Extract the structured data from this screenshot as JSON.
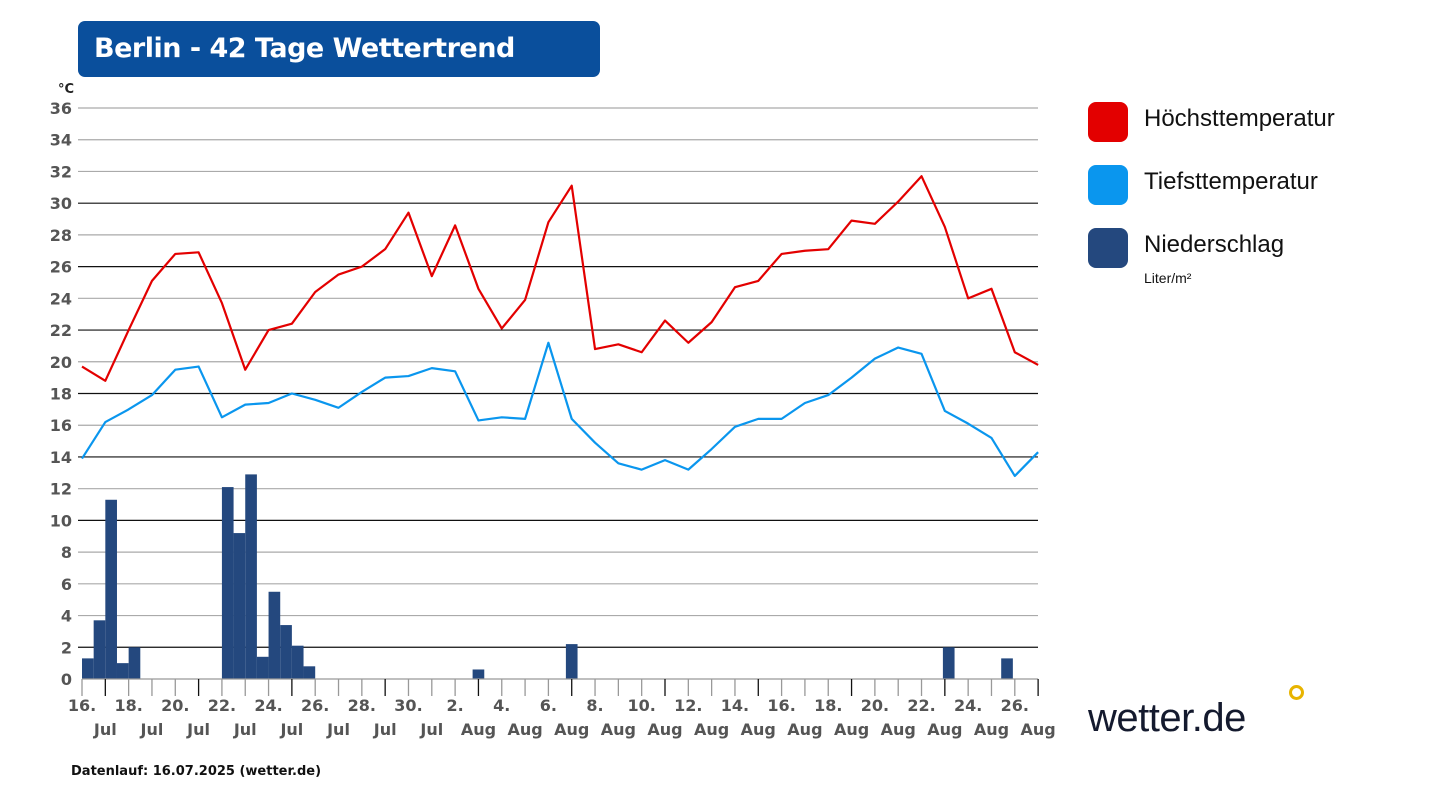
{
  "header": {
    "title": "Berlin - 42 Tage Wettertrend"
  },
  "footer": {
    "note": "Datenlauf: 16.07.2025 (wetter.de)"
  },
  "logo": {
    "text": "wetter.de"
  },
  "chart_data": {
    "type": "line+bar",
    "title": "Berlin - 42 Tage Wettertrend",
    "ylabel": "°C",
    "ylim": [
      0,
      36
    ],
    "yticks": [
      0,
      2,
      4,
      6,
      8,
      10,
      12,
      14,
      16,
      18,
      20,
      22,
      24,
      26,
      28,
      30,
      32,
      34,
      36
    ],
    "grid": true,
    "legend_position": "right",
    "start_date": "2025-07-16",
    "x_tick_labels_top": [
      "16.",
      "18.",
      "20.",
      "22.",
      "24.",
      "26.",
      "28.",
      "30.",
      "2.",
      "4.",
      "6.",
      "8.",
      "10.",
      "12.",
      "14.",
      "16.",
      "18.",
      "20.",
      "22.",
      "24.",
      "26."
    ],
    "x_tick_labels_bottom": [
      "Jul",
      "Jul",
      "Jul",
      "Jul",
      "Jul",
      "Jul",
      "Jul",
      "Jul",
      "Aug",
      "Aug",
      "Aug",
      "Aug",
      "Aug",
      "Aug",
      "Aug",
      "Aug",
      "Aug",
      "Aug",
      "Aug",
      "Aug",
      "Aug"
    ],
    "series": [
      {
        "name": "Höchsttemperatur",
        "type": "line",
        "color": "#e30000",
        "values": [
          19.7,
          18.8,
          22,
          25.1,
          26.8,
          26.9,
          23.7,
          19.5,
          22,
          22.4,
          24.4,
          25.5,
          26,
          27.1,
          29.4,
          25.4,
          28.6,
          24.6,
          22.1,
          23.9,
          28.8,
          31.1,
          20.8,
          21.1,
          20.6,
          22.6,
          21.2,
          22.5,
          24.7,
          25.1,
          26.8,
          27,
          27.1,
          28.9,
          28.7,
          30.1,
          31.7,
          28.5,
          24,
          24.6,
          20.6,
          19.8
        ]
      },
      {
        "name": "Tiefsttemperatur",
        "type": "line",
        "color": "#0a96ee",
        "values": [
          13.9,
          16.2,
          17,
          17.9,
          19.5,
          19.7,
          16.5,
          17.3,
          17.4,
          18,
          17.6,
          17.1,
          18.1,
          19,
          19.1,
          19.6,
          19.4,
          16.3,
          16.5,
          16.4,
          21.2,
          16.4,
          14.9,
          13.6,
          13.2,
          13.8,
          13.2,
          14.5,
          15.9,
          16.4,
          16.4,
          17.4,
          17.9,
          19,
          20.2,
          20.9,
          20.5,
          16.9,
          16.1,
          15.2,
          12.8,
          14.3
        ]
      },
      {
        "name": "Niederschlag",
        "unit": "Liter/m²",
        "type": "bar",
        "color": "#24487e",
        "points": [
          {
            "start": "2025-07-16T00:00",
            "value": 1.3
          },
          {
            "start": "2025-07-16T12:00",
            "value": 3.7
          },
          {
            "start": "2025-07-17T00:00",
            "value": 11.3
          },
          {
            "start": "2025-07-17T12:00",
            "value": 1.0
          },
          {
            "start": "2025-07-18T00:00",
            "value": 2.0
          },
          {
            "start": "2025-07-22T00:00",
            "value": 12.1
          },
          {
            "start": "2025-07-22T12:00",
            "value": 9.2
          },
          {
            "start": "2025-07-23T00:00",
            "value": 12.9
          },
          {
            "start": "2025-07-23T12:00",
            "value": 1.4
          },
          {
            "start": "2025-07-24T00:00",
            "value": 5.5
          },
          {
            "start": "2025-07-24T12:00",
            "value": 3.4
          },
          {
            "start": "2025-07-25T00:00",
            "value": 2.1
          },
          {
            "start": "2025-07-25T12:00",
            "value": 0.8
          },
          {
            "start": "2025-08-01T18:00",
            "value": 0.6
          },
          {
            "start": "2025-08-05T18:00",
            "value": 2.2
          },
          {
            "start": "2025-08-21T22:00",
            "value": 2.0
          },
          {
            "start": "2025-08-24T10:00",
            "value": 1.3
          }
        ]
      }
    ]
  },
  "legend": {
    "items": [
      {
        "label": "Höchsttemperatur",
        "color": "#e30000"
      },
      {
        "label": "Tiefsttemperatur",
        "color": "#0a96ee"
      },
      {
        "label": "Niederschlag",
        "color": "#24487e",
        "unit": "Liter/m²"
      }
    ]
  }
}
